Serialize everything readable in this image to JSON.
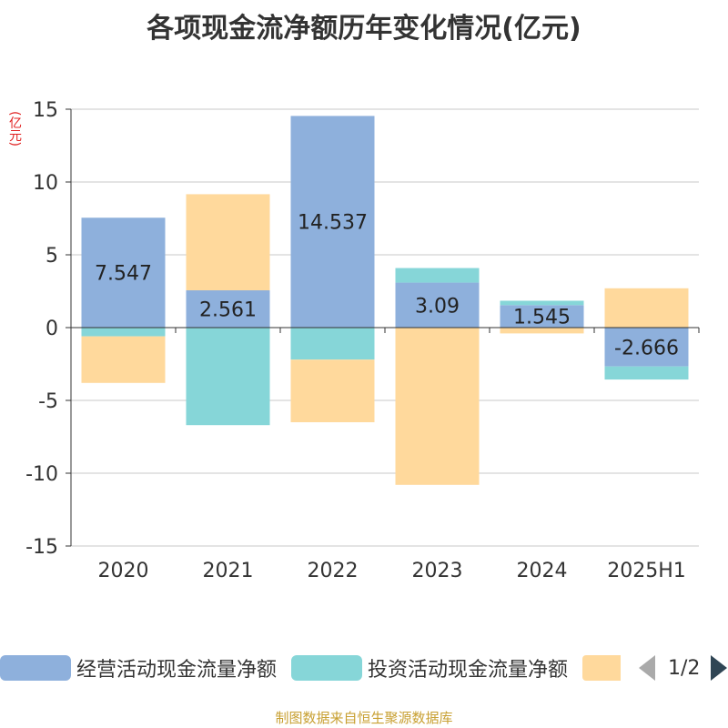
{
  "title": "各项现金流净额历年变化情况(亿元)",
  "unit_label": "(亿元)",
  "footer": "制图数据来自恒生聚源数据库",
  "legend": {
    "items": [
      {
        "label": "经营活动现金流量净额",
        "color": "#8eb0dc"
      },
      {
        "label": "投资活动现金流量净额",
        "color": "#86d6d8"
      },
      {
        "label": "",
        "color": "#ffd99c"
      }
    ],
    "page": "1/2"
  },
  "chart_data": {
    "type": "bar",
    "stacked": true,
    "categories": [
      "2020",
      "2021",
      "2022",
      "2023",
      "2024",
      "2025H1"
    ],
    "ylim": [
      -15,
      15
    ],
    "yticks": [
      15,
      10,
      5,
      0,
      -5,
      -10,
      -15
    ],
    "grid": true,
    "legend_position": "bottom",
    "series": [
      {
        "name": "经营活动现金流量净额",
        "color": "#8eb0dc",
        "values": [
          7.547,
          2.561,
          14.537,
          3.09,
          1.545,
          -2.666
        ],
        "labels": true
      },
      {
        "name": "投资活动现金流量净额",
        "color": "#86d6d8",
        "values": [
          -0.6,
          -6.7,
          -2.2,
          1.0,
          0.3,
          -0.9
        ],
        "labels": false
      },
      {
        "color": "#ffd99c",
        "values": [
          -3.2,
          6.6,
          -4.3,
          -10.8,
          -0.4,
          2.7
        ],
        "labels": false
      }
    ]
  }
}
